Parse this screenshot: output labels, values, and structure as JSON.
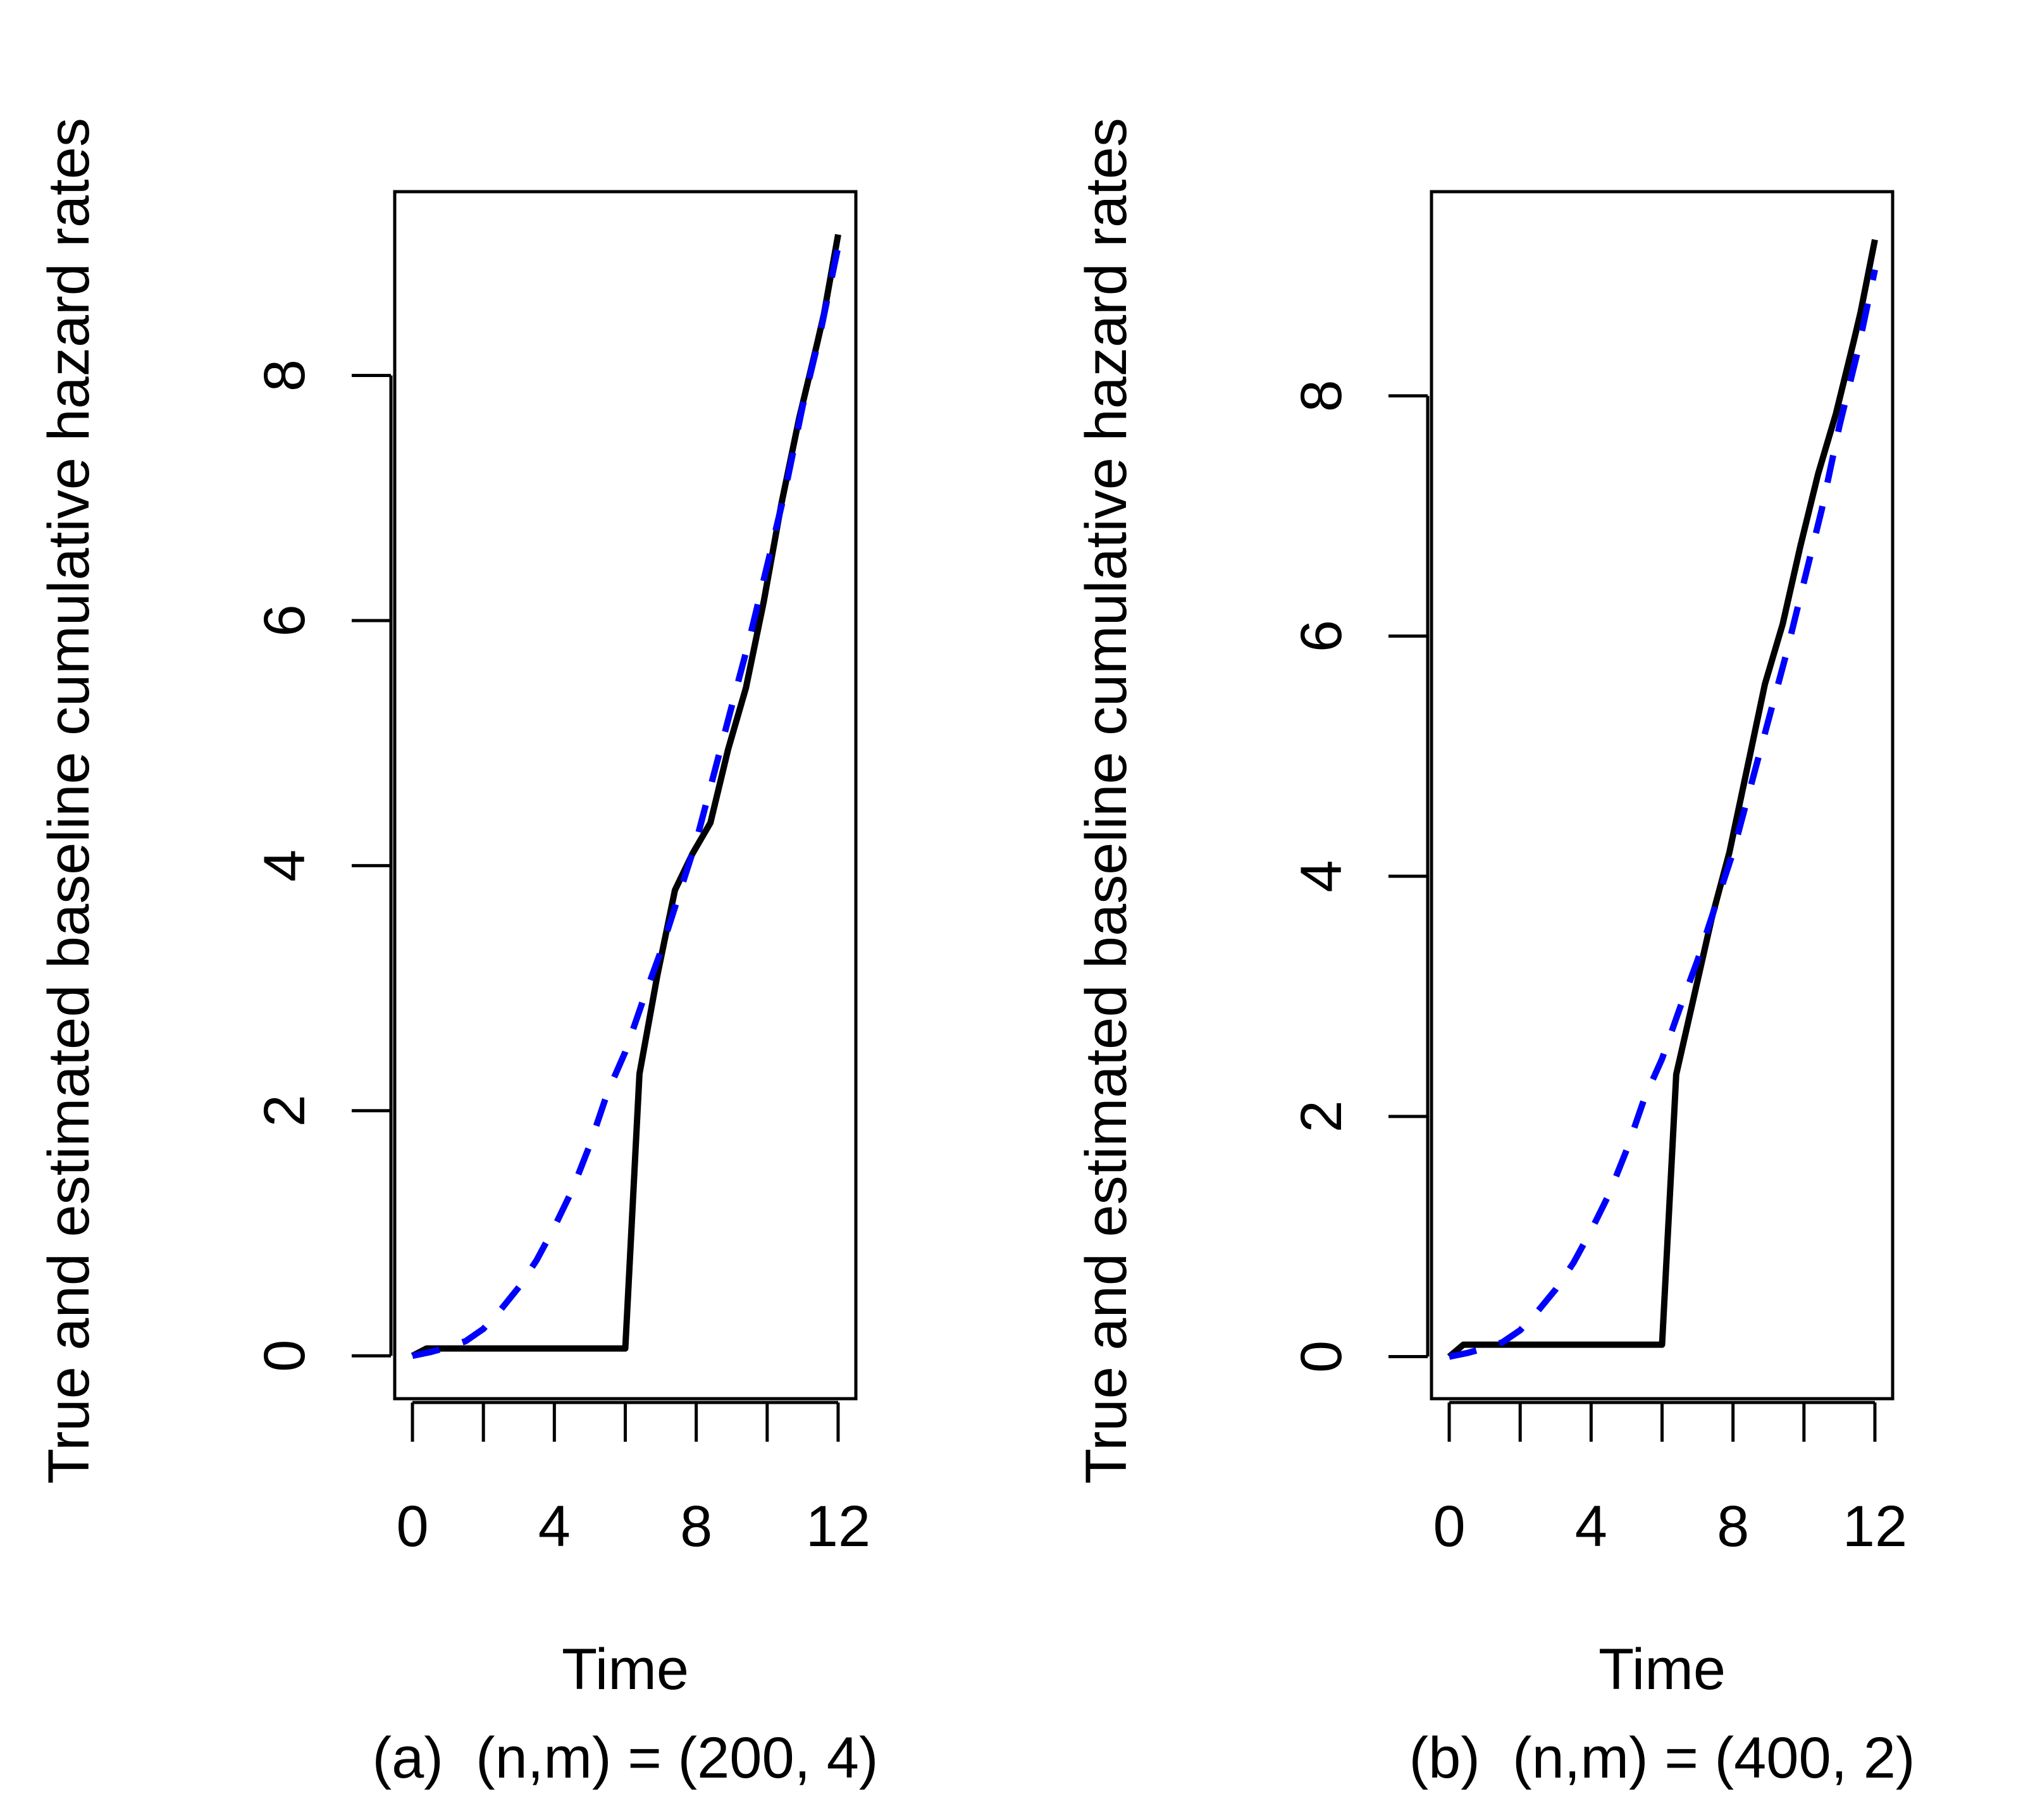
{
  "chart_data": [
    {
      "type": "line",
      "panel": "a",
      "caption": "(a)  (n,m) = (200, 4)",
      "xlabel": "Time",
      "ylabel": "True and estimated baseline cumulative hazard rates",
      "xlim": [
        -0.5,
        12.5
      ],
      "ylim": [
        -0.35,
        9.5
      ],
      "xticks": [
        0,
        2,
        4,
        6,
        8,
        10,
        12
      ],
      "xtick_labels": [
        "0",
        "",
        "4",
        "",
        "8",
        "",
        "12"
      ],
      "yticks": [
        0,
        2,
        4,
        6,
        8
      ],
      "ytick_labels": [
        "0",
        "2",
        "4",
        "6",
        "8"
      ],
      "series": [
        {
          "name": "True",
          "style": "solid",
          "color": "#000000",
          "x": [
            0,
            0.4,
            6.0,
            6.4,
            6.9,
            7.4,
            7.9,
            8.4,
            8.9,
            9.4,
            9.9,
            10.4,
            10.9,
            11.4,
            11.6,
            12.0
          ],
          "y": [
            0,
            0.06,
            0.06,
            2.3,
            3.1,
            3.8,
            4.1,
            4.35,
            4.95,
            5.45,
            6.15,
            6.95,
            7.65,
            8.25,
            8.5,
            9.15
          ]
        },
        {
          "name": "Estimated",
          "style": "dashed",
          "color": "#0000ff",
          "x": [
            0,
            0.5,
            1.0,
            1.5,
            2.0,
            2.5,
            3.0,
            3.5,
            4.0,
            4.5,
            5.0,
            5.5,
            6.0,
            6.5,
            7.0,
            7.5,
            8.0,
            8.5,
            9.0,
            9.5,
            10.0,
            10.5,
            11.0,
            11.5,
            12.0
          ],
          "y": [
            0,
            0.03,
            0.07,
            0.12,
            0.22,
            0.38,
            0.56,
            0.78,
            1.05,
            1.35,
            1.72,
            2.15,
            2.48,
            2.9,
            3.3,
            3.75,
            4.2,
            4.75,
            5.3,
            5.85,
            6.45,
            7.05,
            7.75,
            8.35,
            9.05
          ]
        }
      ]
    },
    {
      "type": "line",
      "panel": "b",
      "caption": "(b)  (n,m) = (400, 2)",
      "xlabel": "Time",
      "ylabel": "True and estimated baseline cumulative hazard rates",
      "xlim": [
        -0.5,
        12.5
      ],
      "ylim": [
        -0.35,
        9.7
      ],
      "xticks": [
        0,
        2,
        4,
        6,
        8,
        10,
        12
      ],
      "xtick_labels": [
        "0",
        "",
        "4",
        "",
        "8",
        "",
        "12"
      ],
      "yticks": [
        0,
        2,
        4,
        6,
        8
      ],
      "ytick_labels": [
        "0",
        "2",
        "4",
        "6",
        "8"
      ],
      "series": [
        {
          "name": "True",
          "style": "solid",
          "color": "#000000",
          "x": [
            0,
            0.4,
            6.0,
            6.4,
            6.9,
            7.4,
            7.9,
            8.4,
            8.9,
            9.4,
            9.9,
            10.4,
            10.9,
            11.4,
            11.6,
            12.0
          ],
          "y": [
            0,
            0.1,
            0.1,
            2.35,
            3.0,
            3.65,
            4.2,
            4.9,
            5.6,
            6.1,
            6.75,
            7.35,
            7.85,
            8.45,
            8.7,
            9.3
          ]
        },
        {
          "name": "Estimated",
          "style": "dashed",
          "color": "#0000ff",
          "x": [
            0,
            0.5,
            1.0,
            1.5,
            2.0,
            2.5,
            3.0,
            3.5,
            4.0,
            4.5,
            5.0,
            5.5,
            6.0,
            6.5,
            7.0,
            7.5,
            8.0,
            8.5,
            9.0,
            9.5,
            10.0,
            10.5,
            11.0,
            11.5,
            12.0
          ],
          "y": [
            0,
            0.03,
            0.07,
            0.12,
            0.22,
            0.38,
            0.56,
            0.78,
            1.05,
            1.35,
            1.72,
            2.15,
            2.48,
            2.9,
            3.3,
            3.75,
            4.2,
            4.75,
            5.3,
            5.85,
            6.45,
            7.05,
            7.75,
            8.35,
            9.05
          ]
        }
      ]
    }
  ]
}
